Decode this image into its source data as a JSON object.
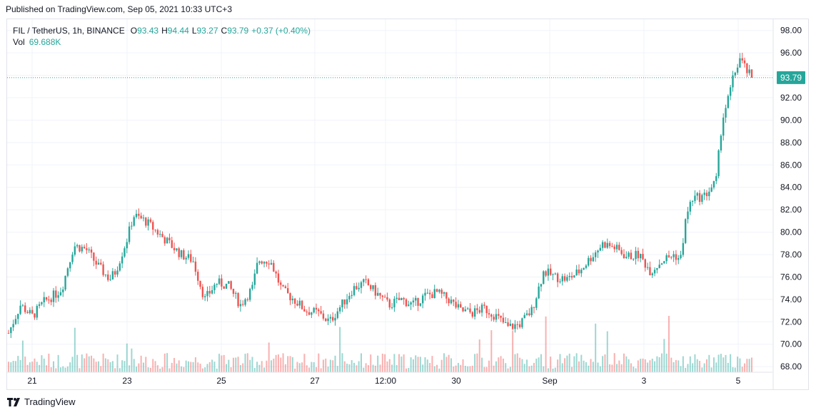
{
  "header": {
    "published": "Published on TradingView.com, Sep 05, 2021 10:33 UTC+3"
  },
  "legend": {
    "symbol": "FIL / TetherUS, 1h, BINANCE",
    "o_label": "O",
    "o_value": "93.43",
    "h_label": "H",
    "h_value": "94.44",
    "l_label": "L",
    "l_value": "93.27",
    "c_label": "C",
    "c_value": "93.79",
    "change": "+0.37 (+0.40%)",
    "vol_label": "Vol",
    "vol_value": "69.688K"
  },
  "footer": {
    "brand": "TradingView"
  },
  "colors": {
    "up": "#26a69a",
    "down": "#ef5350",
    "grid": "#f0f3fa",
    "axis_text": "#131722"
  },
  "chart_data": {
    "type": "candlestick",
    "title": "FIL / TetherUS, 1h, BINANCE",
    "y_ticks": [
      68.0,
      70.0,
      72.0,
      74.0,
      76.0,
      78.0,
      80.0,
      82.0,
      84.0,
      86.0,
      88.0,
      90.0,
      92.0,
      94.0,
      96.0,
      98.0
    ],
    "ylim": [
      67.5,
      99
    ],
    "x_ticks": [
      "21",
      "23",
      "25",
      "27",
      "12:00",
      "30",
      "Sep",
      "3",
      "5"
    ],
    "last_price": 93.79,
    "last_price_label": "93.79",
    "price_path": [
      [
        0,
        71.0
      ],
      [
        2,
        73.5
      ],
      [
        4,
        72.5
      ],
      [
        6,
        73.8
      ],
      [
        8,
        74.5
      ],
      [
        9,
        75.0
      ],
      [
        10,
        77.0
      ],
      [
        11,
        78.8
      ],
      [
        13,
        78.5
      ],
      [
        15,
        77.0
      ],
      [
        17,
        75.8
      ],
      [
        18,
        76.5
      ],
      [
        19,
        78.0
      ],
      [
        20,
        79.5
      ],
      [
        21,
        81.5
      ],
      [
        23,
        81.0
      ],
      [
        25,
        80.0
      ],
      [
        27,
        79.0
      ],
      [
        29,
        78.0
      ],
      [
        31,
        77.5
      ],
      [
        33,
        74.0
      ],
      [
        35,
        75.5
      ],
      [
        37,
        75.2
      ],
      [
        39,
        73.5
      ],
      [
        41,
        75.0
      ],
      [
        42,
        77.5
      ],
      [
        44,
        77.5
      ],
      [
        46,
        74.8
      ],
      [
        48,
        74.0
      ],
      [
        50,
        73.0
      ],
      [
        52,
        72.8
      ],
      [
        54,
        72.0
      ],
      [
        56,
        73.5
      ],
      [
        58,
        75.0
      ],
      [
        60,
        75.5
      ],
      [
        62,
        74.5
      ],
      [
        64,
        73.5
      ],
      [
        66,
        74.0
      ],
      [
        68,
        73.5
      ],
      [
        70,
        74.3
      ],
      [
        72,
        74.6
      ],
      [
        74,
        74.0
      ],
      [
        76,
        73.0
      ],
      [
        78,
        72.8
      ],
      [
        80,
        73.2
      ],
      [
        82,
        72.5
      ],
      [
        84,
        71.5
      ],
      [
        86,
        71.8
      ],
      [
        88,
        73.0
      ],
      [
        90,
        76.5
      ],
      [
        92,
        76.0
      ],
      [
        94,
        75.8
      ],
      [
        96,
        76.5
      ],
      [
        98,
        77.8
      ],
      [
        100,
        79.0
      ],
      [
        102,
        78.6
      ],
      [
        104,
        77.8
      ],
      [
        106,
        78.0
      ],
      [
        108,
        76.5
      ],
      [
        110,
        77.5
      ],
      [
        112,
        78.0
      ],
      [
        113,
        77.5
      ],
      [
        114,
        81.5
      ],
      [
        115,
        83.0
      ],
      [
        117,
        83.2
      ],
      [
        119,
        84.5
      ],
      [
        120,
        90.0
      ],
      [
        121,
        91.8
      ],
      [
        122,
        94.0
      ],
      [
        123,
        95.5
      ],
      [
        124,
        94.5
      ],
      [
        125,
        93.79
      ]
    ]
  }
}
